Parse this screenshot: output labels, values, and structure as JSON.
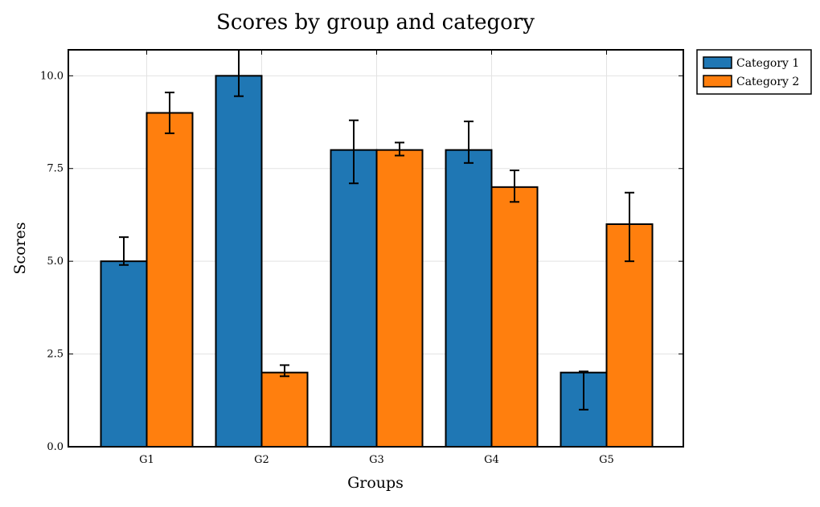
{
  "chart_data": {
    "type": "bar",
    "title": "Scores by group and category",
    "xlabel": "Groups",
    "ylabel": "Scores",
    "categories": [
      "G1",
      "G2",
      "G3",
      "G4",
      "G5"
    ],
    "series": [
      {
        "name": "Category 1",
        "color": "#1f77b4",
        "values": [
          5,
          10,
          8,
          8,
          2
        ],
        "error_low": [
          0.1,
          0.55,
          0.9,
          0.35,
          1.0
        ],
        "error_high": [
          0.65,
          0.7,
          0.8,
          0.77,
          0.03
        ]
      },
      {
        "name": "Category 2",
        "color": "#ff7f0e",
        "values": [
          9,
          2,
          8,
          7,
          6
        ],
        "error_low": [
          0.55,
          0.1,
          0.15,
          0.4,
          1.0
        ],
        "error_high": [
          0.55,
          0.2,
          0.2,
          0.45,
          0.85
        ]
      }
    ],
    "ylim": [
      0,
      10.7
    ],
    "yticks": [
      0,
      2.5,
      5,
      7.5,
      10
    ],
    "ytick_labels": [
      "0.0",
      "2.5",
      "5.0",
      "7.5",
      "10.0"
    ],
    "grid": true,
    "legend_position": "outside-top-right"
  }
}
